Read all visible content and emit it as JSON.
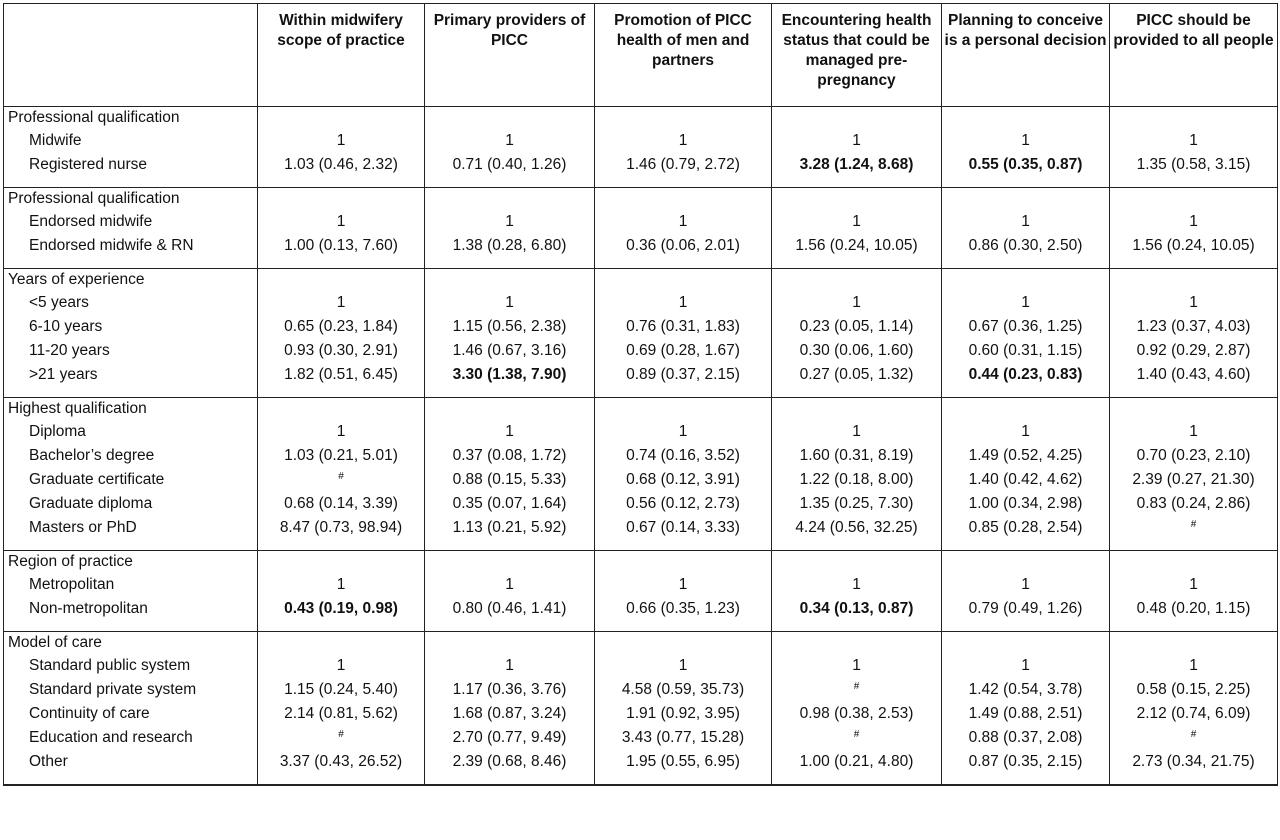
{
  "table": {
    "columns": [
      "",
      "Within midwifery scope of practice",
      "Primary providers of PICC",
      "Promotion of PICC health of men and partners",
      "Encountering health status that could be managed pre-pregnancy",
      "Planning to conceive is a personal decision",
      "PICC should be provided to all people"
    ],
    "sections": [
      {
        "title": "Professional qualification",
        "rows": [
          {
            "label": "Midwife",
            "cells": [
              "1",
              "1",
              "1",
              "1",
              "1",
              "1"
            ]
          },
          {
            "label": "Registered nurse",
            "cells": [
              "1.03 (0.46, 2.32)",
              "0.71 (0.40, 1.26)",
              "1.46 (0.79, 2.72)",
              "3.28 (1.24, 8.68)",
              "0.55 (0.35, 0.87)",
              "1.35 (0.58, 3.15)"
            ],
            "bold": [
              false,
              false,
              false,
              true,
              true,
              false
            ]
          }
        ]
      },
      {
        "title": "Professional qualification",
        "rows": [
          {
            "label": "Endorsed midwife",
            "cells": [
              "1",
              "1",
              "1",
              "1",
              "1",
              "1"
            ]
          },
          {
            "label": "Endorsed midwife & RN",
            "cells": [
              "1.00 (0.13, 7.60)",
              "1.38 (0.28, 6.80)",
              "0.36 (0.06, 2.01)",
              "1.56 (0.24, 10.05)",
              "0.86 (0.30, 2.50)",
              "1.56 (0.24, 10.05)"
            ]
          }
        ]
      },
      {
        "title": "Years of experience",
        "rows": [
          {
            "label": "<5 years",
            "cells": [
              "1",
              "1",
              "1",
              "1",
              "1",
              "1"
            ]
          },
          {
            "label": "6-10 years",
            "cells": [
              "0.65 (0.23, 1.84)",
              "1.15 (0.56, 2.38)",
              "0.76 (0.31, 1.83)",
              "0.23 (0.05, 1.14)",
              "0.67 (0.36, 1.25)",
              "1.23 (0.37, 4.03)"
            ]
          },
          {
            "label": "11-20 years",
            "cells": [
              "0.93 (0.30, 2.91)",
              "1.46 (0.67, 3.16)",
              "0.69 (0.28, 1.67)",
              "0.30 (0.06, 1.60)",
              "0.60 (0.31, 1.15)",
              "0.92 (0.29, 2.87)"
            ]
          },
          {
            "label": ">21 years",
            "cells": [
              "1.82 (0.51, 6.45)",
              "3.30 (1.38, 7.90)",
              "0.89 (0.37, 2.15)",
              "0.27 (0.05, 1.32)",
              "0.44 (0.23, 0.83)",
              "1.40 (0.43, 4.60)"
            ],
            "bold": [
              false,
              true,
              false,
              false,
              true,
              false
            ]
          }
        ]
      },
      {
        "title": "Highest qualification",
        "rows": [
          {
            "label": "Diploma",
            "cells": [
              "1",
              "1",
              "1",
              "1",
              "1",
              "1"
            ]
          },
          {
            "label": "Bachelor’s degree",
            "cells": [
              "1.03 (0.21, 5.01)",
              "0.37 (0.08, 1.72)",
              "0.74 (0.16, 3.52)",
              "1.60 (0.31, 8.19)",
              "1.49 (0.52, 4.25)",
              "0.70 (0.23, 2.10)"
            ]
          },
          {
            "label": "Graduate certificate",
            "cells": [
              "#",
              "0.88 (0.15, 5.33)",
              "0.68 (0.12, 3.91)",
              "1.22 (0.18, 8.00)",
              "1.40 (0.42, 4.62)",
              "2.39 (0.27, 21.30)"
            ]
          },
          {
            "label": "Graduate diploma",
            "cells": [
              "0.68 (0.14, 3.39)",
              "0.35 (0.07, 1.64)",
              "0.56 (0.12, 2.73)",
              "1.35 (0.25, 7.30)",
              "1.00 (0.34, 2.98)",
              "0.83 (0.24, 2.86)"
            ]
          },
          {
            "label": "Masters or PhD",
            "cells": [
              "8.47 (0.73, 98.94)",
              "1.13 (0.21, 5.92)",
              "0.67 (0.14, 3.33)",
              "4.24 (0.56, 32.25)",
              "0.85 (0.28, 2.54)",
              "#"
            ]
          }
        ]
      },
      {
        "title": "Region of practice",
        "rows": [
          {
            "label": "Metropolitan",
            "cells": [
              "1",
              "1",
              "1",
              "1",
              "1",
              "1"
            ]
          },
          {
            "label": "Non-metropolitan",
            "cells": [
              "0.43 (0.19, 0.98)",
              "0.80 (0.46, 1.41)",
              "0.66 (0.35, 1.23)",
              "0.34 (0.13, 0.87)",
              "0.79 (0.49, 1.26)",
              "0.48 (0.20, 1.15)"
            ],
            "bold": [
              true,
              false,
              false,
              true,
              false,
              false
            ]
          }
        ]
      },
      {
        "title": "Model of care",
        "rows": [
          {
            "label": "Standard public system",
            "cells": [
              "1",
              "1",
              "1",
              "1",
              "1",
              "1"
            ]
          },
          {
            "label": "Standard private system",
            "cells": [
              "1.15 (0.24, 5.40)",
              "1.17 (0.36, 3.76)",
              "4.58 (0.59, 35.73)",
              "#",
              "1.42 (0.54, 3.78)",
              "0.58 (0.15, 2.25)"
            ]
          },
          {
            "label": "Continuity of care",
            "cells": [
              "2.14 (0.81, 5.62)",
              "1.68 (0.87, 3.24)",
              "1.91 (0.92, 3.95)",
              "0.98 (0.38, 2.53)",
              "1.49 (0.88, 2.51)",
              "2.12 (0.74, 6.09)"
            ]
          },
          {
            "label": "Education and research",
            "cells": [
              "#",
              "2.70 (0.77, 9.49)",
              "3.43 (0.77, 15.28)",
              "#",
              "0.88 (0.37, 2.08)",
              "#"
            ]
          },
          {
            "label": "Other",
            "cells": [
              "3.37 (0.43, 26.52)",
              "2.39 (0.68, 8.46)",
              "1.95 (0.55, 6.95)",
              "1.00 (0.21, 4.80)",
              "0.87 (0.35, 2.15)",
              "2.73 (0.34, 21.75)"
            ]
          }
        ]
      }
    ]
  }
}
